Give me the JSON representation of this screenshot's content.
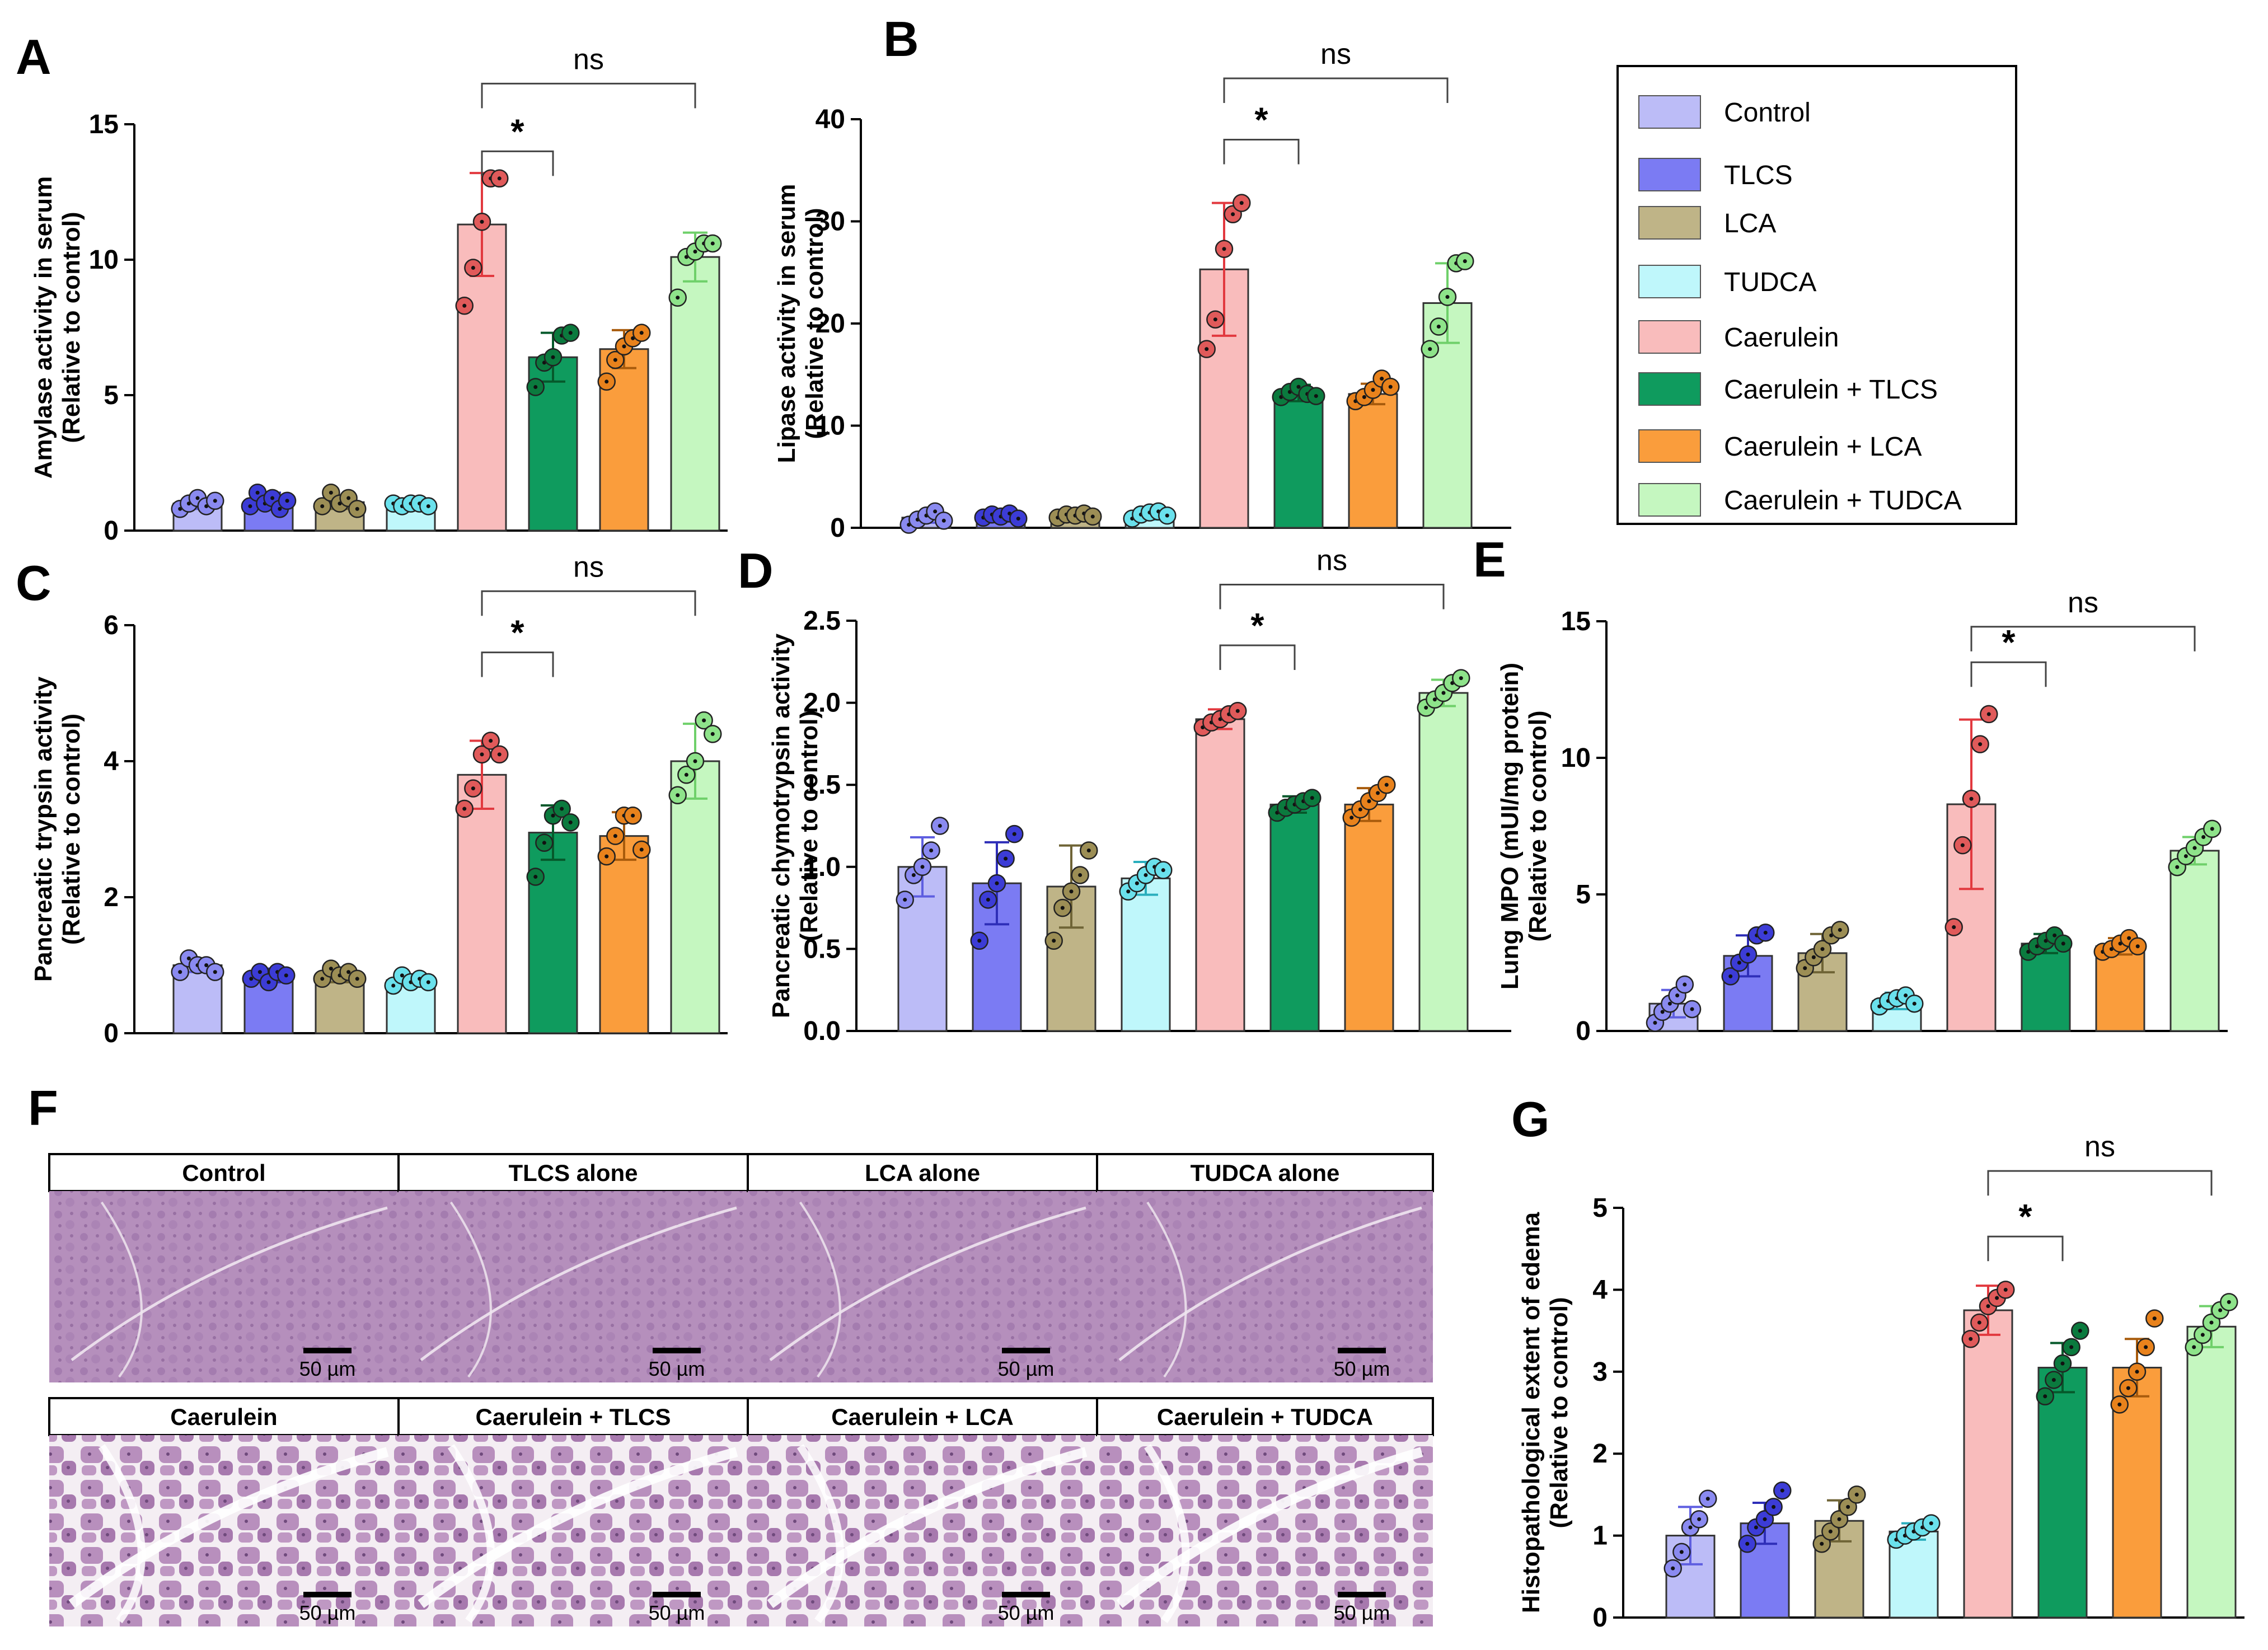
{
  "colors": {
    "fill": [
      "#bcbcf7",
      "#7b7bf3",
      "#bfb487",
      "#bff7fb",
      "#f9bcbc",
      "#0f9b5e",
      "#fa9d3c",
      "#c5f7c0"
    ],
    "dot": [
      "#8a8af0",
      "#3c3cd6",
      "#9c8e55",
      "#6ae1ec",
      "#e05a5a",
      "#0b7a3e",
      "#e8821c",
      "#8ee38a"
    ],
    "err": [
      "#5e5ee0",
      "#2e2eb8",
      "#6f6436",
      "#2aaebd",
      "#e2393f",
      "#06592b",
      "#a85b0c",
      "#6fd06a"
    ],
    "tissue_light": "#c9a4cb",
    "tissue_dark": "#a77aae"
  },
  "legend": {
    "items": [
      "Control",
      "TLCS",
      "LCA",
      "TUDCA",
      "Caerulein",
      "Caerulein + TLCS",
      "Caerulein + LCA",
      "Caerulein + TUDCA"
    ]
  },
  "histology": {
    "label": "F",
    "headers_top": [
      "Control",
      "TLCS alone",
      "LCA alone",
      "TUDCA alone"
    ],
    "headers_bottom": [
      "Caerulein",
      "Caerulein + TLCS",
      "Caerulein + LCA",
      "Caerulein + TUDCA"
    ],
    "scale_label": "50 µm"
  },
  "chart_data": [
    {
      "label": "A",
      "type": "bar",
      "ylabel_lines": [
        "Amylase activity in serum",
        "(Relative to control)"
      ],
      "ylim": [
        0,
        15
      ],
      "yticks": [
        0,
        5,
        10,
        15
      ],
      "tick_labels": [
        "0",
        "5",
        "10",
        "15"
      ],
      "values": [
        1.0,
        1.1,
        1.05,
        0.95,
        11.3,
        6.4,
        6.7,
        10.1
      ],
      "sd": [
        0.2,
        0.3,
        0.25,
        0.15,
        1.9,
        0.9,
        0.7,
        0.9
      ],
      "points": [
        [
          0.8,
          1.0,
          1.2,
          0.9,
          1.1
        ],
        [
          0.9,
          1.4,
          1.0,
          1.2,
          0.8,
          1.1
        ],
        [
          0.9,
          1.4,
          1.0,
          1.2,
          0.8
        ],
        [
          1.0,
          0.9,
          1.0,
          1.0,
          0.9
        ],
        [
          8.3,
          9.7,
          11.4,
          13.0,
          13.0
        ],
        [
          5.3,
          6.2,
          6.4,
          7.2,
          7.3
        ],
        [
          5.5,
          6.3,
          6.8,
          7.1,
          7.3
        ],
        [
          8.6,
          10.1,
          10.3,
          10.6,
          10.6
        ]
      ],
      "comparisons": [
        {
          "from": 4,
          "to": 5,
          "label": "*",
          "y": 14.0
        },
        {
          "from": 4,
          "to": 7,
          "label": "ns",
          "y": 16.5
        }
      ]
    },
    {
      "label": "B",
      "type": "bar",
      "ylabel_lines": [
        "Lipase activity in serum",
        "(Relative to control)"
      ],
      "ylim": [
        0,
        40
      ],
      "yticks": [
        0,
        10,
        20,
        30,
        40
      ],
      "tick_labels": [
        "0",
        "10",
        "20",
        "30",
        "40"
      ],
      "values": [
        1.0,
        1.1,
        1.2,
        1.2,
        25.3,
        13.2,
        13.1,
        22.0
      ],
      "sd": [
        0.5,
        0.3,
        0.3,
        0.4,
        6.5,
        0.8,
        1.0,
        3.9
      ],
      "points": [
        [
          0.3,
          0.8,
          1.2,
          1.6,
          0.7
        ],
        [
          1.0,
          1.3,
          1.1,
          1.4,
          0.9
        ],
        [
          1.0,
          1.3,
          1.2,
          1.4,
          1.1
        ],
        [
          0.9,
          1.3,
          1.5,
          1.6,
          1.2
        ],
        [
          17.5,
          20.4,
          27.3,
          30.7,
          31.8
        ],
        [
          12.8,
          13.3,
          13.8,
          13.1,
          12.9
        ],
        [
          12.4,
          12.8,
          13.5,
          14.6,
          13.8
        ],
        [
          17.5,
          19.7,
          22.6,
          25.9,
          26.1
        ]
      ],
      "comparisons": [
        {
          "from": 4,
          "to": 5,
          "label": "*",
          "y": 38.0
        },
        {
          "from": 4,
          "to": 7,
          "label": "ns",
          "y": 44.0
        }
      ]
    },
    {
      "label": "C",
      "type": "bar",
      "ylabel_lines": [
        "Pancreatic trypsin activity",
        "(Relative to control)"
      ],
      "ylim": [
        0,
        6
      ],
      "yticks": [
        0,
        2,
        4,
        6
      ],
      "tick_labels": [
        "0",
        "2",
        "4",
        "6"
      ],
      "values": [
        1.0,
        0.85,
        0.85,
        0.78,
        3.8,
        2.95,
        2.9,
        4.0
      ],
      "sd": [
        0.1,
        0.1,
        0.1,
        0.08,
        0.5,
        0.4,
        0.35,
        0.55
      ],
      "points": [
        [
          0.9,
          1.1,
          1.0,
          1.0,
          0.9
        ],
        [
          0.8,
          0.9,
          0.75,
          0.9,
          0.85
        ],
        [
          0.8,
          0.95,
          0.85,
          0.9,
          0.8
        ],
        [
          0.7,
          0.85,
          0.75,
          0.8,
          0.75
        ],
        [
          3.3,
          3.6,
          4.1,
          4.3,
          4.1
        ],
        [
          2.3,
          2.8,
          3.2,
          3.3,
          3.1
        ],
        [
          2.6,
          2.9,
          3.2,
          3.2,
          2.7
        ],
        [
          3.5,
          3.8,
          4.0,
          4.6,
          4.4
        ]
      ],
      "comparisons": [
        {
          "from": 4,
          "to": 5,
          "label": "*",
          "y": 5.6
        },
        {
          "from": 4,
          "to": 7,
          "label": "ns",
          "y": 6.5
        }
      ]
    },
    {
      "label": "D",
      "type": "bar",
      "ylabel_lines": [
        "Pancreatic chymotrypsin activity",
        "(Relative to control)"
      ],
      "ylim": [
        0,
        2.5
      ],
      "yticks": [
        0,
        0.5,
        1.0,
        1.5,
        2.0,
        2.5
      ],
      "tick_labels": [
        "0.0",
        "0.5",
        "1.0",
        "1.5",
        "2.0",
        "2.5"
      ],
      "values": [
        1.0,
        0.9,
        0.88,
        0.93,
        1.9,
        1.38,
        1.38,
        2.06
      ],
      "sd": [
        0.18,
        0.25,
        0.25,
        0.1,
        0.06,
        0.05,
        0.1,
        0.08
      ],
      "points": [
        [
          0.8,
          0.95,
          1.0,
          1.1,
          1.25
        ],
        [
          0.55,
          0.8,
          0.9,
          1.05,
          1.2
        ],
        [
          0.55,
          0.75,
          0.85,
          0.95,
          1.1
        ],
        [
          0.85,
          0.9,
          0.95,
          1.0,
          0.98
        ],
        [
          1.85,
          1.88,
          1.9,
          1.93,
          1.95
        ],
        [
          1.33,
          1.36,
          1.38,
          1.4,
          1.42
        ],
        [
          1.3,
          1.35,
          1.4,
          1.45,
          1.5
        ],
        [
          1.97,
          2.02,
          2.06,
          2.12,
          2.15
        ]
      ],
      "comparisons": [
        {
          "from": 4,
          "to": 5,
          "label": "*",
          "y": 2.35
        },
        {
          "from": 4,
          "to": 7,
          "label": "ns",
          "y": 2.72
        }
      ]
    },
    {
      "label": "E",
      "type": "bar",
      "ylabel_lines": [
        "Lung MPO (mUI/mg protein)",
        "(Relative to control)"
      ],
      "ylim": [
        0,
        15
      ],
      "yticks": [
        0,
        5,
        10,
        15
      ],
      "tick_labels": [
        "0",
        "5",
        "10",
        "15"
      ],
      "values": [
        1.0,
        2.75,
        2.85,
        1.1,
        8.3,
        3.2,
        3.1,
        6.6
      ],
      "sd": [
        0.5,
        0.75,
        0.7,
        0.3,
        3.1,
        0.35,
        0.3,
        0.5
      ],
      "points": [
        [
          0.3,
          0.7,
          1.0,
          1.3,
          1.7,
          0.8
        ],
        [
          2.0,
          2.5,
          2.8,
          3.5,
          3.6
        ],
        [
          2.3,
          2.7,
          3.0,
          3.5,
          3.7
        ],
        [
          0.9,
          1.1,
          1.2,
          1.3,
          1.0
        ],
        [
          3.8,
          6.8,
          8.5,
          10.5,
          11.6
        ],
        [
          2.9,
          3.1,
          3.3,
          3.5,
          3.2
        ],
        [
          2.9,
          3.0,
          3.2,
          3.4,
          3.1
        ],
        [
          6.0,
          6.4,
          6.7,
          7.1,
          7.4
        ]
      ],
      "comparisons": [
        {
          "from": 4,
          "to": 5,
          "label": "*",
          "y": 13.5
        },
        {
          "from": 4,
          "to": 7,
          "label": "ns",
          "y": 14.8
        }
      ]
    },
    {
      "label": "G",
      "type": "bar",
      "ylabel_lines": [
        "Histopathological extent of edema",
        "(Relative to control)"
      ],
      "ylim": [
        0,
        5
      ],
      "yticks": [
        0,
        1,
        2,
        3,
        4,
        5
      ],
      "tick_labels": [
        "0",
        "1",
        "2",
        "3",
        "4",
        "5"
      ],
      "values": [
        1.0,
        1.15,
        1.18,
        1.05,
        3.75,
        3.05,
        3.05,
        3.55
      ],
      "sd": [
        0.35,
        0.25,
        0.25,
        0.1,
        0.3,
        0.3,
        0.35,
        0.25
      ],
      "points": [
        [
          0.6,
          0.8,
          1.1,
          1.2,
          1.45
        ],
        [
          0.9,
          1.1,
          1.2,
          1.35,
          1.55
        ],
        [
          0.9,
          1.05,
          1.2,
          1.35,
          1.5
        ],
        [
          0.95,
          1.0,
          1.05,
          1.1,
          1.15
        ],
        [
          3.4,
          3.6,
          3.8,
          3.9,
          4.0
        ],
        [
          2.7,
          2.9,
          3.1,
          3.3,
          3.5
        ],
        [
          2.6,
          2.8,
          3.0,
          3.3,
          3.65
        ],
        [
          3.3,
          3.45,
          3.6,
          3.75,
          3.85
        ]
      ],
      "comparisons": [
        {
          "from": 4,
          "to": 5,
          "label": "*",
          "y": 4.65
        },
        {
          "from": 4,
          "to": 7,
          "label": "ns",
          "y": 5.45
        }
      ]
    }
  ]
}
